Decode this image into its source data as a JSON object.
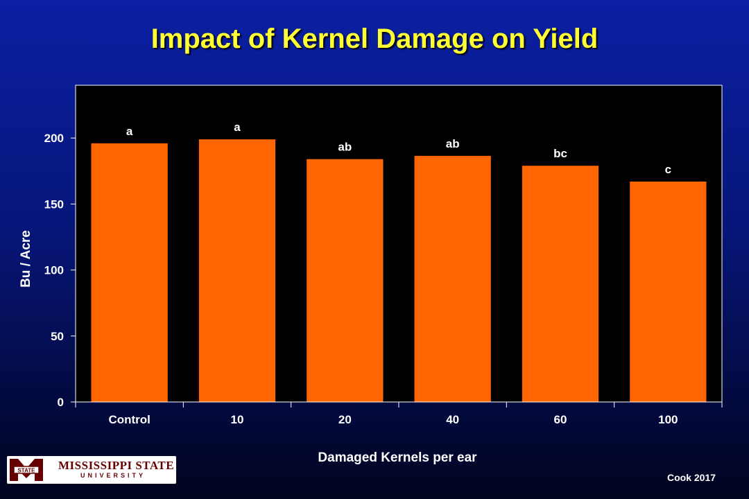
{
  "slide": {
    "title": "Impact of Kernel Damage on Yield",
    "credit": "Cook 2017",
    "logo": {
      "name": "MISSISSIPPI STATE",
      "sub": "UNIVERSITY",
      "mark_text": "STATE",
      "icon": "mississippi-state-m-logo"
    }
  },
  "colors": {
    "bar": "#ff6600",
    "plot_background": "#000000",
    "title": "#ffff33",
    "text": "#ffffff"
  },
  "chart_data": {
    "type": "bar",
    "title": "Impact of Kernel Damage on Yield",
    "xlabel": "Damaged Kernels per ear",
    "ylabel": "Bu / Acre",
    "categories": [
      "Control",
      "10",
      "20",
      "40",
      "60",
      "100"
    ],
    "values": [
      196,
      199,
      184,
      186.5,
      179,
      167
    ],
    "annotations": [
      "a",
      "a",
      "ab",
      "ab",
      "bc",
      "c"
    ],
    "ylim": [
      0,
      240
    ],
    "yticks": [
      0,
      50,
      100,
      150,
      200
    ],
    "grid": false,
    "legend": "none"
  }
}
